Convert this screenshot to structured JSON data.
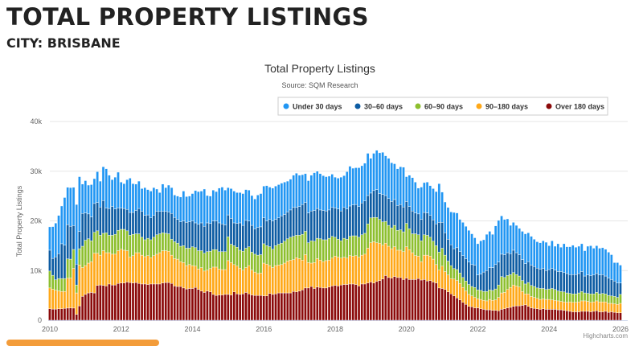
{
  "page": {
    "heading": "TOTAL PROPERTY LISTINGS",
    "subheading": "CITY: BRISBANE"
  },
  "chart_data": {
    "type": "bar",
    "stacked": true,
    "title": "Total Property Listings",
    "subtitle": "Source: SQM Research",
    "ylabel": "Total Property Listings",
    "xlabel": "",
    "ylim": [
      0,
      40000
    ],
    "yticks": [
      "0",
      "10k",
      "20k",
      "30k",
      "40k"
    ],
    "xticks": [
      "2010",
      "2012",
      "2014",
      "2016",
      "2018",
      "2020",
      "2022",
      "2024",
      "2026"
    ],
    "x_range": [
      "2010-01",
      "2026-01"
    ],
    "x_frequency": "monthly",
    "grid": true,
    "legend_position": "top-right",
    "credit": "Highcharts.com",
    "series": [
      {
        "name": "Under 30 days",
        "color": "#2196F3",
        "values": [
          4700,
          6400,
          6800,
          7700,
          7600,
          9600,
          7500,
          7800,
          7700,
          12000,
          11000,
          5900,
          6500,
          5800,
          6500,
          5000,
          6200,
          5200,
          6800,
          7900,
          6700,
          5400,
          6400,
          7200,
          5200,
          5000,
          6000,
          6900,
          5800,
          5300,
          5500,
          4600,
          5600,
          5100,
          5400,
          5600,
          4500,
          3800,
          5500,
          4800,
          5400,
          5200,
          4500,
          4700,
          5000,
          6000,
          5200,
          5200,
          5500,
          6500,
          6600,
          6400,
          7500,
          5500,
          5500,
          6200,
          5900,
          7000,
          7400,
          7000,
          5500,
          6000,
          6400,
          6200,
          6100,
          6400,
          6200,
          6200,
          6000,
          6000,
          6500,
          6700,
          6400,
          7100,
          6500,
          6600,
          6700,
          6700,
          6600,
          6500,
          6200,
          6200,
          6500,
          6900,
          6300,
          6000,
          5800,
          6500,
          7200,
          7600,
          7500,
          7300,
          7000,
          6900,
          6800,
          6700,
          6200,
          6200,
          6800,
          6400,
          7500,
          8000,
          7400,
          7400,
          7800,
          7500,
          7600,
          8500,
          7000,
          7500,
          7900,
          8200,
          8500,
          8000,
          8100,
          7800,
          7200,
          7400,
          7600,
          8000,
          5000,
          6300,
          6700,
          6200,
          5200,
          6500,
          6000,
          6200,
          6000,
          6300,
          6500,
          7800,
          6100,
          6200,
          6400,
          6600,
          7300,
          7000,
          6500,
          6700,
          6500,
          6400,
          6200,
          5500,
          6300,
          6700,
          6500,
          7300,
          7300,
          6700,
          7800,
          8400,
          7700,
          7100,
          6800,
          5700,
          5600,
          5500,
          5300,
          5700,
          6000,
          5800,
          5800,
          5500,
          5300,
          5300,
          5600,
          5700,
          4800,
          5600,
          4800,
          5600,
          4900,
          5800,
          5400,
          5600,
          5900,
          5500,
          5500,
          5600,
          5100,
          5800,
          6000,
          5400,
          5600,
          5400,
          5400,
          5400,
          5200,
          5000,
          3700,
          4100,
          3600
        ]
      },
      {
        "name": "30-60 days",
        "color": "#0D5CA3",
        "values": [
          4200,
          3400,
          4600,
          5000,
          7000,
          6700,
          6900,
          6600,
          4800,
          4200,
          3500,
          6600,
          5500,
          5000,
          4800,
          5800,
          5700,
          5700,
          6600,
          5000,
          5400,
          5800,
          5100,
          4500,
          4300,
          4200,
          4300,
          4600,
          4400,
          4700,
          5100,
          5200,
          4900,
          4700,
          4400,
          4400,
          4700,
          4500,
          4300,
          4400,
          4400,
          5200,
          4900,
          4800,
          4900,
          5000,
          5200,
          5300,
          5200,
          5000,
          5300,
          5600,
          5400,
          5800,
          5600,
          5800,
          5800,
          5800,
          5600,
          5400,
          4400,
          5200,
          4600,
          4800,
          5500,
          5200,
          5600,
          5200,
          5400,
          5100,
          5600,
          5600,
          5200,
          5000,
          5500,
          5700,
          5300,
          5300,
          5500,
          5400,
          5400,
          5500,
          5800,
          5600,
          5800,
          6000,
          5800,
          6000,
          6000,
          6200,
          6000,
          5800,
          5900,
          5800,
          5700,
          5800,
          5900,
          6100,
          6000,
          6200,
          6100,
          6100,
          6200,
          6300,
          6200,
          6400,
          6500,
          5700,
          5000,
          5400,
          5600,
          5200,
          5500,
          5200,
          5400,
          5300,
          5200,
          5000,
          5100,
          5000,
          4400,
          4500,
          4600,
          4200,
          4200,
          4300,
          4500,
          4500,
          4400,
          4300,
          4400,
          6000,
          5200,
          4500,
          4400,
          4200,
          4000,
          4400,
          4300,
          4400,
          4500,
          4500,
          4400,
          4500,
          3000,
          3300,
          3900,
          4200,
          4500,
          4600,
          4900,
          4600,
          4500,
          4600,
          4600,
          4200,
          4500,
          4400,
          4300,
          4200,
          4100,
          4200,
          4100,
          4000,
          4000,
          3900,
          4000,
          3800,
          3900,
          4000,
          3900,
          3900,
          4000,
          3900,
          3900,
          3800,
          3900,
          3900,
          3900,
          4000,
          3400,
          3700,
          3700,
          3800,
          3800,
          3800,
          3800,
          3600,
          3500,
          3300,
          3100,
          2900,
          2300
        ]
      },
      {
        "name": "60-90 days",
        "color": "#8DBF2E",
        "values": [
          3400,
          2800,
          2100,
          2500,
          2600,
          2600,
          3900,
          3800,
          3800,
          1600,
          3300,
          4300,
          5100,
          4900,
          4200,
          4200,
          4500,
          4000,
          3500,
          4000,
          3500,
          3800,
          4000,
          4100,
          4000,
          4200,
          4000,
          4400,
          4300,
          3800,
          3800,
          3600,
          3400,
          3500,
          3600,
          3700,
          3900,
          3800,
          3600,
          3500,
          3500,
          3200,
          3400,
          3200,
          3100,
          3400,
          3500,
          3300,
          3800,
          3700,
          3700,
          3400,
          3600,
          3700,
          3500,
          3500,
          3500,
          3500,
          3600,
          3600,
          4800,
          3700,
          3800,
          3800,
          3600,
          3800,
          3900,
          3800,
          3600,
          3600,
          3700,
          3700,
          3900,
          3700,
          3800,
          3700,
          4000,
          4200,
          4300,
          4400,
          4500,
          4600,
          4700,
          4500,
          4700,
          5200,
          4700,
          4000,
          4500,
          4300,
          4100,
          4300,
          4400,
          4200,
          4400,
          4400,
          3800,
          3600,
          3500,
          3800,
          3800,
          3900,
          4100,
          4000,
          4000,
          4100,
          4200,
          4900,
          5000,
          4900,
          5100,
          4800,
          4700,
          4400,
          4200,
          4200,
          4300,
          4000,
          4100,
          4000,
          4700,
          4200,
          3800,
          4400,
          4300,
          4200,
          4100,
          4000,
          3800,
          3600,
          3800,
          3600,
          3600,
          3300,
          2800,
          2600,
          2100,
          2200,
          2100,
          2000,
          2000,
          2000,
          1900,
          2000,
          1800,
          1800,
          1800,
          1900,
          1900,
          2000,
          2200,
          2500,
          3300,
          3000,
          2800,
          2600,
          2500,
          2300,
          2200,
          2200,
          2000,
          2300,
          2200,
          2200,
          2100,
          2200,
          2100,
          2000,
          2100,
          2300,
          2200,
          2000,
          2000,
          2000,
          1900,
          1700,
          1700,
          1700,
          1800,
          1900,
          1600,
          1600,
          1700,
          1600,
          1700,
          1600,
          1700,
          1600,
          1600,
          1500,
          1500,
          1400,
          1800
        ]
      },
      {
        "name": "90-180 days",
        "color": "#FFA818",
        "values": [
          4200,
          4000,
          3800,
          3600,
          3500,
          3400,
          6000,
          6000,
          8000,
          4300,
          8200,
          5800,
          5800,
          6000,
          6200,
          8000,
          6500,
          6000,
          7000,
          6700,
          6300,
          6200,
          6200,
          6600,
          6800,
          6600,
          6300,
          5100,
          5500,
          6000,
          6200,
          5800,
          5500,
          5800,
          5300,
          5700,
          6000,
          6300,
          6500,
          6400,
          6300,
          5700,
          5500,
          5500,
          5000,
          5100,
          4700,
          4800,
          4600,
          4300,
          4100,
          4700,
          4300,
          4200,
          4700,
          5500,
          5700,
          5200,
          5100,
          5000,
          6800,
          6500,
          5500,
          5600,
          5300,
          4800,
          5000,
          5700,
          5000,
          4700,
          4400,
          4500,
          6600,
          6400,
          5600,
          5400,
          5700,
          5600,
          5700,
          6000,
          6400,
          6600,
          6400,
          6900,
          6500,
          6000,
          6700,
          5100,
          4700,
          5200,
          5700,
          5500,
          5300,
          5500,
          5400,
          5600,
          5900,
          5800,
          5400,
          5500,
          5300,
          5700,
          5600,
          5800,
          5800,
          5800,
          6000,
          7000,
          7900,
          8300,
          7800,
          7500,
          6800,
          6500,
          6300,
          5900,
          6000,
          5500,
          5500,
          5600,
          6300,
          6000,
          5400,
          4800,
          4500,
          3700,
          4900,
          5200,
          4900,
          4600,
          3700,
          3600,
          4500,
          3600,
          3400,
          3100,
          3400,
          3500,
          3300,
          3000,
          2700,
          2400,
          2200,
          2100,
          1800,
          1900,
          1800,
          1800,
          2100,
          2000,
          2100,
          2700,
          3300,
          3300,
          3700,
          4000,
          4300,
          4000,
          3800,
          2800,
          2200,
          2500,
          2300,
          2200,
          2100,
          2000,
          2000,
          2000,
          2000,
          1900,
          1800,
          1800,
          1700,
          1700,
          1700,
          1900,
          1900,
          1900,
          2000,
          2100,
          2100,
          2000,
          1900,
          1900,
          2000,
          2000,
          2000,
          1900,
          1800,
          1700,
          1700,
          1700,
          1900
        ]
      },
      {
        "name": "Over 180 days",
        "color": "#8B0A0A",
        "values": [
          2300,
          2250,
          2250,
          2300,
          2300,
          2400,
          2450,
          2500,
          2450,
          1200,
          2900,
          4800,
          5200,
          5500,
          5600,
          5500,
          7000,
          7100,
          7000,
          6900,
          7300,
          7100,
          7100,
          7400,
          7500,
          7500,
          7700,
          7600,
          7500,
          7600,
          7400,
          7300,
          7300,
          7200,
          7300,
          7300,
          7300,
          7300,
          7500,
          7600,
          7600,
          7400,
          6900,
          6800,
          6800,
          6500,
          6300,
          6400,
          6400,
          6600,
          6200,
          5900,
          5600,
          5900,
          5700,
          5200,
          5000,
          5100,
          5100,
          5200,
          5200,
          5100,
          5700,
          5300,
          5200,
          5300,
          5600,
          5300,
          5100,
          5000,
          5000,
          5000,
          4900,
          4900,
          5400,
          5200,
          5300,
          5500,
          5500,
          5500,
          5500,
          5500,
          5800,
          5700,
          5900,
          6100,
          6500,
          6500,
          6800,
          6400,
          6700,
          6600,
          6500,
          6500,
          6700,
          6900,
          7000,
          6900,
          7100,
          7200,
          7200,
          7300,
          7300,
          7200,
          6900,
          7300,
          7300,
          7500,
          7700,
          7500,
          7800,
          8000,
          8300,
          9000,
          8600,
          8500,
          8800,
          8600,
          8600,
          8200,
          8500,
          8200,
          8200,
          8200,
          8400,
          8100,
          8200,
          7900,
          8000,
          7700,
          7500,
          6500,
          6400,
          6200,
          5700,
          5300,
          4900,
          4500,
          4100,
          3600,
          3200,
          2800,
          2700,
          2500,
          2500,
          2300,
          2200,
          2100,
          2100,
          2000,
          2000,
          1900,
          2200,
          2300,
          2500,
          2600,
          2800,
          2900,
          2900,
          3000,
          3100,
          2800,
          2500,
          2400,
          2300,
          2200,
          2300,
          2200,
          2200,
          2200,
          2200,
          2100,
          2100,
          2000,
          1900,
          1800,
          1700,
          1700,
          1700,
          1800,
          1800,
          1800,
          1700,
          1800,
          1900,
          1700,
          1700,
          1800,
          1600,
          1700,
          1600,
          1500,
          1500
        ]
      }
    ]
  }
}
